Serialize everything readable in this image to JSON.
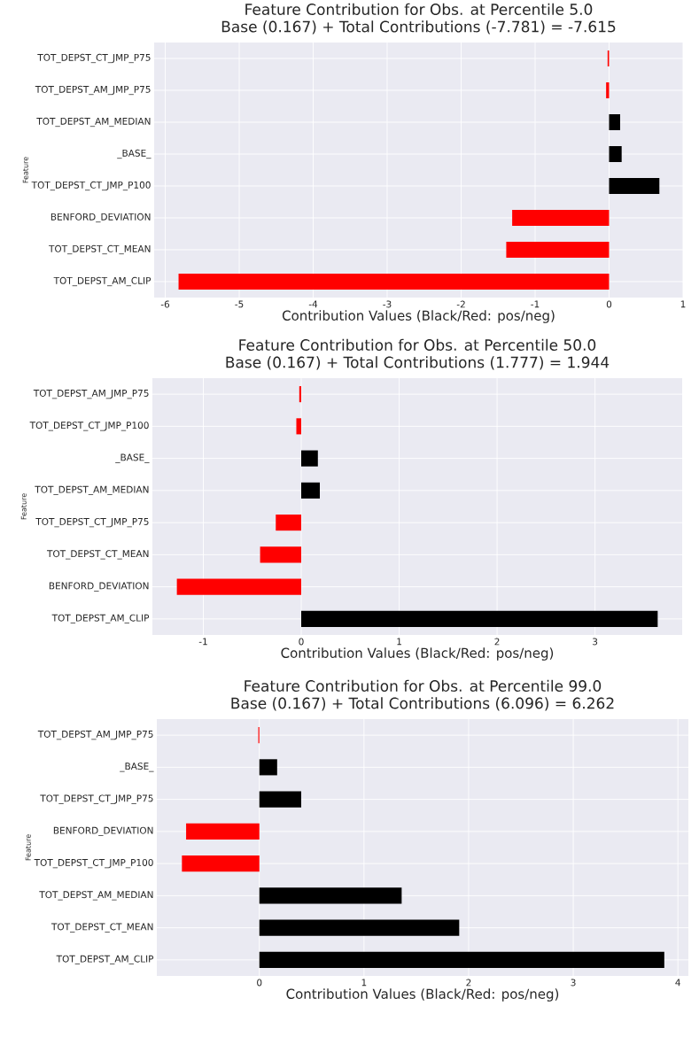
{
  "chart_data": [
    {
      "type": "bar",
      "orientation": "horizontal",
      "title": "Feature Contribution for Obs. at Percentile 5.0",
      "subtitle": "Base (0.167) + Total Contributions (-7.781) = -7.615",
      "xlabel": "Contribution Values (Black/Red: pos/neg)",
      "ylabel": "Feature",
      "categories": [
        "TOT_DEPST_CT_JMP_P75",
        "TOT_DEPST_AM_JMP_P75",
        "TOT_DEPST_AM_MEDIAN",
        "_BASE_",
        "TOT_DEPST_CT_JMP_P100",
        "BENFORD_DEVIATION",
        "TOT_DEPST_CT_MEAN",
        "TOT_DEPST_AM_CLIP"
      ],
      "values": [
        -0.02,
        -0.04,
        0.15,
        0.17,
        0.68,
        -1.31,
        -1.39,
        -5.82
      ],
      "colors": [
        "#ff0000",
        "#ff0000",
        "#000000",
        "#000000",
        "#000000",
        "#ff0000",
        "#ff0000",
        "#ff0000"
      ],
      "xlim": [
        -6.15,
        1.0
      ],
      "xticks": [
        -6,
        -5,
        -4,
        -3,
        -2,
        -1,
        0,
        1
      ],
      "grid": true
    },
    {
      "type": "bar",
      "orientation": "horizontal",
      "title": "Feature Contribution for Obs. at Percentile 50.0",
      "subtitle": "Base (0.167) + Total Contributions (1.777) = 1.944",
      "xlabel": "Contribution Values (Black/Red: pos/neg)",
      "ylabel": "Feature",
      "categories": [
        "TOT_DEPST_AM_JMP_P75",
        "TOT_DEPST_CT_JMP_P100",
        "_BASE_",
        "TOT_DEPST_AM_MEDIAN",
        "TOT_DEPST_CT_JMP_P75",
        "TOT_DEPST_CT_MEAN",
        "BENFORD_DEVIATION",
        "TOT_DEPST_AM_CLIP"
      ],
      "values": [
        -0.02,
        -0.05,
        0.17,
        0.19,
        -0.26,
        -0.42,
        -1.27,
        3.64
      ],
      "colors": [
        "#ff0000",
        "#ff0000",
        "#000000",
        "#000000",
        "#ff0000",
        "#ff0000",
        "#ff0000",
        "#000000"
      ],
      "xlim": [
        -1.52,
        3.89
      ],
      "xticks": [
        -1,
        0,
        1,
        2,
        3
      ],
      "grid": true
    },
    {
      "type": "bar",
      "orientation": "horizontal",
      "title": "Feature Contribution for Obs. at Percentile 99.0",
      "subtitle": "Base (0.167) + Total Contributions (6.096) = 6.262",
      "xlabel": "Contribution Values (Black/Red: pos/neg)",
      "ylabel": "Feature",
      "categories": [
        "TOT_DEPST_AM_JMP_P75",
        "_BASE_",
        "TOT_DEPST_CT_JMP_P75",
        "BENFORD_DEVIATION",
        "TOT_DEPST_CT_JMP_P100",
        "TOT_DEPST_AM_MEDIAN",
        "TOT_DEPST_CT_MEAN",
        "TOT_DEPST_AM_CLIP"
      ],
      "values": [
        -0.01,
        0.17,
        0.4,
        -0.7,
        -0.74,
        1.36,
        1.91,
        3.87
      ],
      "colors": [
        "#ff0000",
        "#000000",
        "#000000",
        "#ff0000",
        "#ff0000",
        "#000000",
        "#000000",
        "#000000"
      ],
      "xlim": [
        -0.98,
        4.1
      ],
      "xticks": [
        0,
        1,
        2,
        3,
        4
      ],
      "grid": true
    }
  ]
}
